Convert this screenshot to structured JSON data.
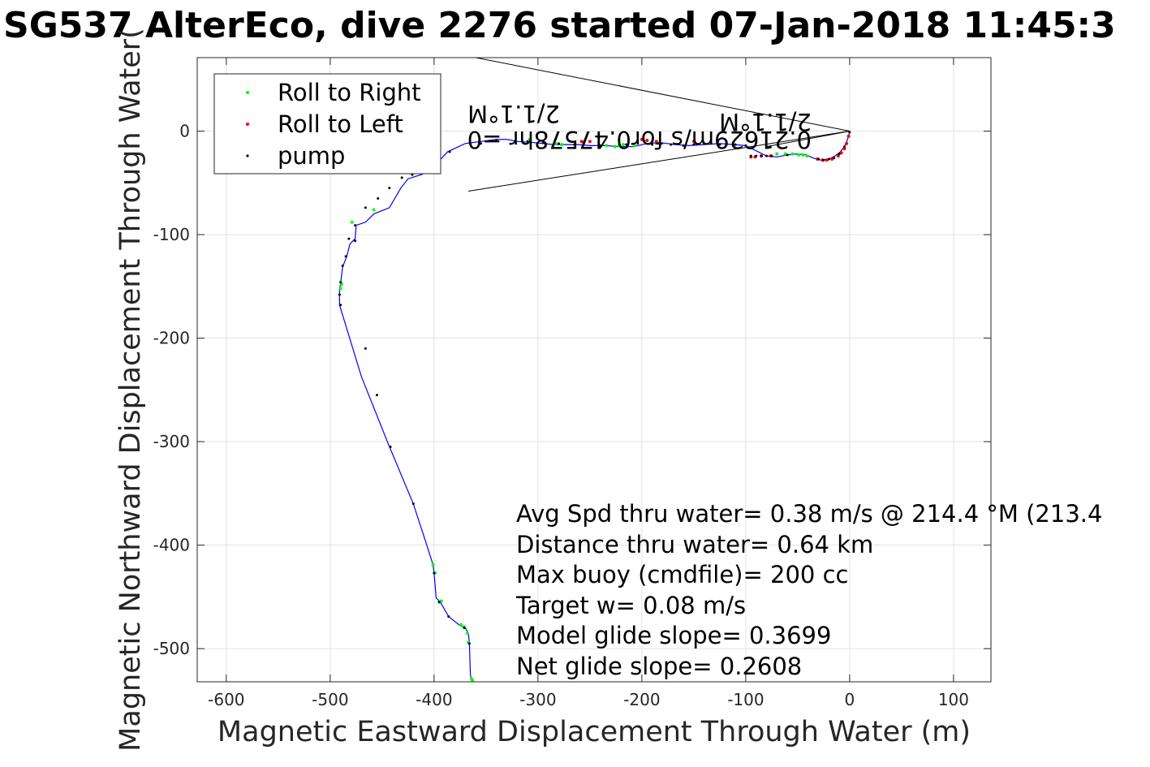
{
  "chart_data": {
    "type": "scatter",
    "title": "SG537 AlterEco, dive 2276 started 07-Jan-2018 11:45:3",
    "xlabel": "Magnetic Eastward Displacement Through Water (m)",
    "ylabel": "Magnetic Northward Displacement Through Water(",
    "xlim": [
      -628,
      136
    ],
    "ylim": [
      -532,
      71
    ],
    "xticks": [
      -600,
      -500,
      -400,
      -300,
      -200,
      -100,
      0,
      100
    ],
    "yticks": [
      -500,
      -400,
      -300,
      -200,
      -100,
      0
    ],
    "xtick_labels": [
      "-600",
      "-500",
      "-400",
      "-300",
      "-200",
      "-100",
      "0",
      "100"
    ],
    "ytick_labels": [
      "-500",
      "-400",
      "-300",
      "-200",
      "-100",
      "0"
    ],
    "grid": true,
    "legend_placement": "top-left",
    "legend": [
      {
        "label": "Roll to Right",
        "color": "#00ff00"
      },
      {
        "label": "Roll to Left",
        "color": "#ff0000"
      },
      {
        "label": "pump",
        "color": "#000000"
      }
    ],
    "series": [
      {
        "color": "#0000ff",
        "x": [
          -363,
          -365,
          -366,
          -367,
          -370,
          -376,
          -386,
          -394,
          -398,
          -400,
          -401,
          -407,
          -420,
          -445,
          -470,
          -491,
          -491,
          -490,
          -488,
          -484,
          -481,
          -476,
          -475,
          -466,
          -458,
          -443,
          -432,
          -425,
          -412,
          -400,
          -387,
          -370,
          -355,
          -340,
          -330,
          -320,
          -305,
          -295,
          -285,
          -275,
          -262,
          -250,
          -235,
          -222,
          -208,
          -195,
          -183,
          -168,
          -155,
          -140,
          -125,
          -112,
          -100,
          -90,
          -80,
          -70,
          -60,
          -50,
          -42,
          -35,
          -28,
          -20,
          -14,
          -9,
          -5,
          -2,
          0
        ],
        "y": [
          -532,
          -526,
          -495,
          -485,
          -480,
          -477,
          -469,
          -455,
          -451,
          -427,
          -419,
          -400,
          -360,
          -300,
          -237,
          -168,
          -153,
          -147,
          -131,
          -121,
          -109,
          -104,
          -91,
          -88,
          -80,
          -74,
          -55,
          -46,
          -42,
          -34,
          -20,
          -12,
          -10,
          -8,
          -8,
          -10,
          -11,
          -12,
          -13,
          -13,
          -13,
          -14,
          -14,
          -15,
          -15,
          -12,
          -11,
          -13,
          -14,
          -13,
          -12,
          -13,
          -14,
          -19,
          -24,
          -25,
          -23,
          -22,
          -23,
          -26,
          -28,
          -27,
          -24,
          -20,
          -15,
          -8,
          0
        ]
      },
      {
        "name": "Roll to Right",
        "color": "#00ff00",
        "x": [
          -363,
          -364,
          -367,
          -368,
          -371,
          -374,
          -393,
          -395,
          -399,
          -401,
          -458,
          -479,
          -489,
          -490,
          -440,
          -308,
          -283,
          -277,
          -234,
          -226,
          -222,
          -218,
          -207,
          -70,
          -62,
          -55,
          -49,
          -45,
          -41
        ],
        "y": [
          -531,
          -529,
          -494,
          -485,
          -479,
          -477,
          -454,
          -455,
          -427,
          -419,
          -76,
          -88,
          -148,
          -152,
          -40,
          -8,
          -12,
          -13,
          -14,
          -15,
          -14,
          -13,
          -14,
          -22,
          -22,
          -22,
          -23,
          -23,
          -24
        ]
      },
      {
        "name": "Roll to Left",
        "color": "#ff0000",
        "x": [
          -258,
          -256,
          -250,
          -200,
          -195,
          -186,
          -150,
          -95,
          -91,
          -85,
          -76,
          -31,
          -26,
          -22,
          -17,
          -11,
          -8,
          -5,
          -3,
          -1
        ],
        "y": [
          -10,
          -11,
          -10,
          -8,
          -9,
          -10,
          -10,
          -25,
          -25,
          -24,
          -24,
          -27,
          -28,
          -28,
          -27,
          -24,
          -21,
          -17,
          -12,
          -5
        ]
      },
      {
        "name": "pump",
        "color": "#000000",
        "x": [
          -366,
          -371,
          -386,
          -395,
          -400,
          -420,
          -442,
          -455,
          -466,
          -476,
          -482,
          -485,
          -488,
          -490,
          -491,
          -490,
          -476,
          -466,
          -454,
          -443,
          -431,
          -421,
          -410,
          -385,
          -355,
          -340,
          -310,
          -295,
          -280,
          -265,
          -240,
          -215,
          -190,
          -172,
          -160,
          -150,
          -140,
          -125,
          -110,
          -100,
          -95,
          -90,
          -85,
          -80,
          -75,
          -60,
          -30,
          -25,
          -20,
          -15,
          -10,
          -5,
          0
        ],
        "y": [
          -495,
          -480,
          -469,
          -455,
          -427,
          -360,
          -305,
          -255,
          -210,
          -106,
          -104,
          -121,
          -130,
          -146,
          -158,
          -168,
          -91,
          -74,
          -65,
          -55,
          -45,
          -42,
          -36,
          -20,
          -12,
          -9,
          -10,
          -11,
          -12,
          -13,
          -14,
          -13,
          -13,
          -13,
          -14,
          -13,
          -12,
          -13,
          -13,
          -14,
          -24,
          -24,
          -24,
          -24,
          -24,
          -23,
          -27,
          -28,
          -27,
          -26,
          -22,
          -15,
          -1
        ]
      }
    ],
    "reference_lines": [
      {
        "x": [
          -365,
          0
        ],
        "y": [
          72,
          0
        ],
        "color": "#000000"
      },
      {
        "x": [
          -367,
          0
        ],
        "y": [
          -58,
          0
        ],
        "color": "#000000"
      },
      {
        "x": [
          -80,
          0
        ],
        "y": [
          -15,
          0
        ],
        "color": "#000000"
      }
    ],
    "annotations": {
      "stats": [
        "Avg Spd thru water=  0.38 m/s @ 214.4 °M (213.4",
        "Distance thru water=  0.64 km",
        "Max buoy (cmdfile)= 200 cc",
        "Target w= 0.08 m/s",
        "Model glide slope= 0.3699",
        "Net glide slope= 0.2608"
      ],
      "flipped_current": "0.21629m/s for0.47578hr =0",
      "flipped_heading_1": "2/1.1°M",
      "flipped_heading_2": "2/1.1°M"
    }
  }
}
